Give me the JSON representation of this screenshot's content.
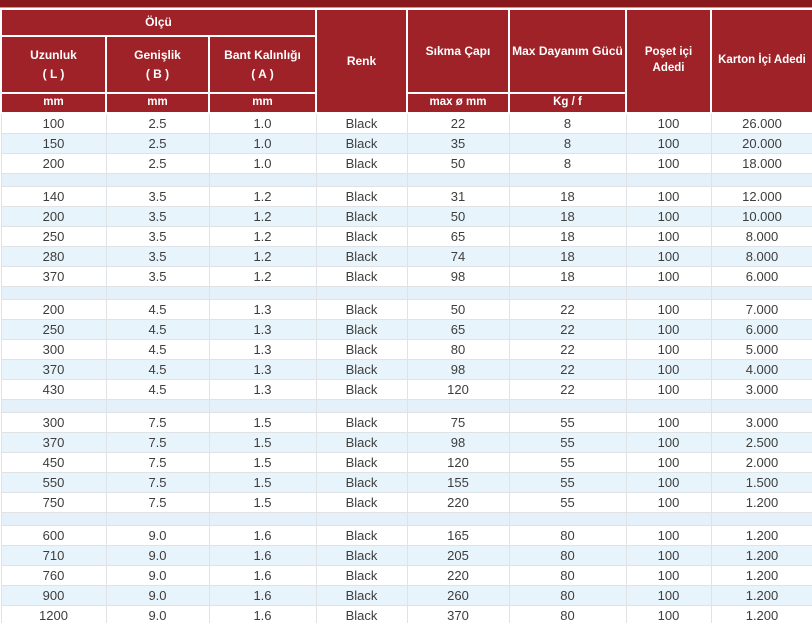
{
  "table": {
    "header": {
      "olcu": "Ölçü",
      "columns": [
        {
          "label": "Uzunluk",
          "sub": "( L )",
          "unit": "mm"
        },
        {
          "label": "Genişlik",
          "sub": "( B )",
          "unit": "mm"
        },
        {
          "label": "Bant Kalınlığı",
          "sub": "( A )",
          "unit": "mm"
        },
        {
          "label": "Renk"
        },
        {
          "label": "Sıkma Çapı",
          "unit": "max ø mm"
        },
        {
          "label": "Max Dayanım Gücü",
          "unit": "Kg / f"
        },
        {
          "label": "Poşet içi Adedi"
        },
        {
          "label": "Karton İçi Adedi"
        }
      ]
    },
    "groups": [
      {
        "rows": [
          [
            "100",
            "2.5",
            "1.0",
            "Black",
            "22",
            "8",
            "100",
            "26.000"
          ],
          [
            "150",
            "2.5",
            "1.0",
            "Black",
            "35",
            "8",
            "100",
            "20.000"
          ],
          [
            "200",
            "2.5",
            "1.0",
            "Black",
            "50",
            "8",
            "100",
            "18.000"
          ]
        ]
      },
      {
        "rows": [
          [
            "140",
            "3.5",
            "1.2",
            "Black",
            "31",
            "18",
            "100",
            "12.000"
          ],
          [
            "200",
            "3.5",
            "1.2",
            "Black",
            "50",
            "18",
            "100",
            "10.000"
          ],
          [
            "250",
            "3.5",
            "1.2",
            "Black",
            "65",
            "18",
            "100",
            "8.000"
          ],
          [
            "280",
            "3.5",
            "1.2",
            "Black",
            "74",
            "18",
            "100",
            "8.000"
          ],
          [
            "370",
            "3.5",
            "1.2",
            "Black",
            "98",
            "18",
            "100",
            "6.000"
          ]
        ]
      },
      {
        "rows": [
          [
            "200",
            "4.5",
            "1.3",
            "Black",
            "50",
            "22",
            "100",
            "7.000"
          ],
          [
            "250",
            "4.5",
            "1.3",
            "Black",
            "65",
            "22",
            "100",
            "6.000"
          ],
          [
            "300",
            "4.5",
            "1.3",
            "Black",
            "80",
            "22",
            "100",
            "5.000"
          ],
          [
            "370",
            "4.5",
            "1.3",
            "Black",
            "98",
            "22",
            "100",
            "4.000"
          ],
          [
            "430",
            "4.5",
            "1.3",
            "Black",
            "120",
            "22",
            "100",
            "3.000"
          ]
        ]
      },
      {
        "rows": [
          [
            "300",
            "7.5",
            "1.5",
            "Black",
            "75",
            "55",
            "100",
            "3.000"
          ],
          [
            "370",
            "7.5",
            "1.5",
            "Black",
            "98",
            "55",
            "100",
            "2.500"
          ],
          [
            "450",
            "7.5",
            "1.5",
            "Black",
            "120",
            "55",
            "100",
            "2.000"
          ],
          [
            "550",
            "7.5",
            "1.5",
            "Black",
            "155",
            "55",
            "100",
            "1.500"
          ],
          [
            "750",
            "7.5",
            "1.5",
            "Black",
            "220",
            "55",
            "100",
            "1.200"
          ]
        ]
      },
      {
        "rows": [
          [
            "600",
            "9.0",
            "1.6",
            "Black",
            "165",
            "80",
            "100",
            "1.200"
          ],
          [
            "710",
            "9.0",
            "1.6",
            "Black",
            "205",
            "80",
            "100",
            "1.200"
          ],
          [
            "760",
            "9.0",
            "1.6",
            "Black",
            "220",
            "80",
            "100",
            "1.200"
          ],
          [
            "900",
            "9.0",
            "1.6",
            "Black",
            "260",
            "80",
            "100",
            "1.200"
          ],
          [
            "1200",
            "9.0",
            "1.6",
            "Black",
            "370",
            "80",
            "100",
            "1.200"
          ]
        ]
      }
    ]
  },
  "colors": {
    "header_red": "#9e2227",
    "header_dark_red": "#87191e",
    "row_alt_blue": "#e8f4fb",
    "separator_blue": "#e4f1fa",
    "body_text": "#3d3d3c",
    "grid_border": "#dfe3e6"
  }
}
